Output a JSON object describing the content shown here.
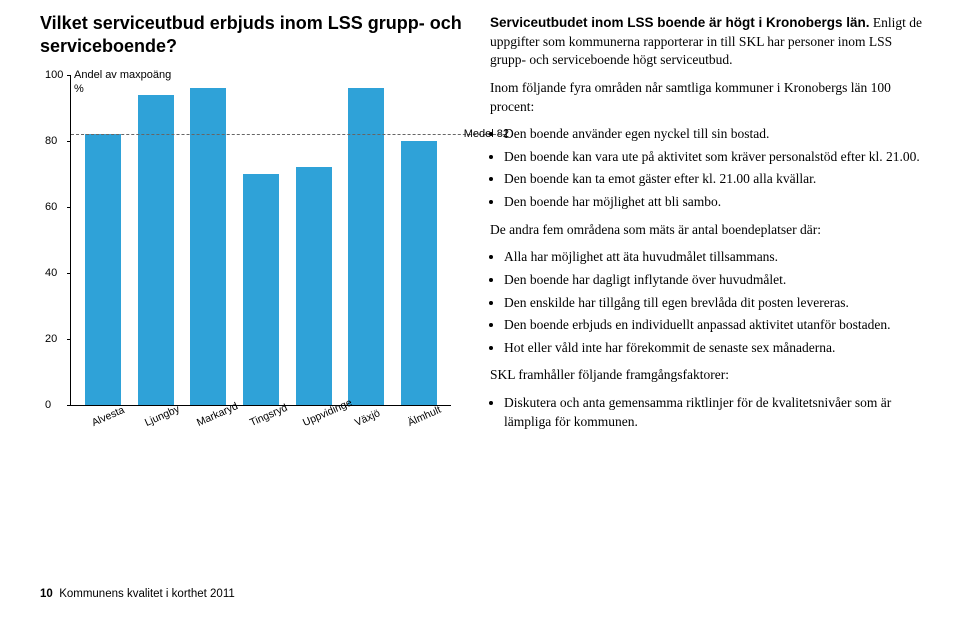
{
  "chart": {
    "title": "Vilket serviceutbud erbjuds inom LSS grupp- och serviceboende?",
    "y_upper": "Andel av maxpoäng",
    "y_lower": "%",
    "type": "bar",
    "ylim": [
      0,
      100
    ],
    "ytick_step": 20,
    "ticks": [
      0,
      20,
      40,
      60,
      80,
      100
    ],
    "categories": [
      "Alvesta",
      "Ljungby",
      "Markaryd",
      "Tingsryd",
      "Uppvidinge",
      "Växjö",
      "Älmhult"
    ],
    "values": [
      82,
      94,
      96,
      70,
      72,
      96,
      80
    ],
    "bar_color": "#2fa2d8",
    "medel_value": 82,
    "medel_label": "Medel 82",
    "axis_color": "#000000",
    "background_color": "#ffffff"
  },
  "text": {
    "lead": "Serviceutbudet inom LSS boende är högt i Kronobergs län.",
    "p1": "Enligt de uppgifter som kommunerna rapporterar in till SKL har personer inom LSS grupp- och serviceboende högt serviceutbud.",
    "p2": "Inom följande fyra områden når samtliga kommuner i Kronobergs län 100 procent:",
    "list1": [
      "Den boende använder egen nyckel till sin bostad.",
      "Den boende kan vara ute på aktivitet som kräver personalstöd efter kl. 21.00.",
      "Den boende kan ta emot gäster efter kl. 21.00 alla kvällar.",
      "Den boende har möjlighet att bli sambo."
    ],
    "p3": "De andra fem områdena som mäts är antal boendeplatser där:",
    "list2": [
      "Alla har möjlighet att äta huvudmålet tillsammans.",
      "Den boende har dagligt inflytande över huvudmålet.",
      "Den enskilde har tillgång till egen brevlåda dit posten levereras.",
      "Den boende erbjuds en individuellt anpassad aktivitet utanför bostaden.",
      "Hot eller våld inte har förekommit de senaste sex månaderna."
    ],
    "p4": "SKL framhåller följande framgångsfaktorer:",
    "list3": [
      "Diskutera och anta gemensamma riktlinjer för de kvalitetsnivåer som är lämpliga för kommunen."
    ]
  },
  "footer": {
    "page": "10",
    "title": "Kommunens kvalitet i korthet 2011"
  }
}
